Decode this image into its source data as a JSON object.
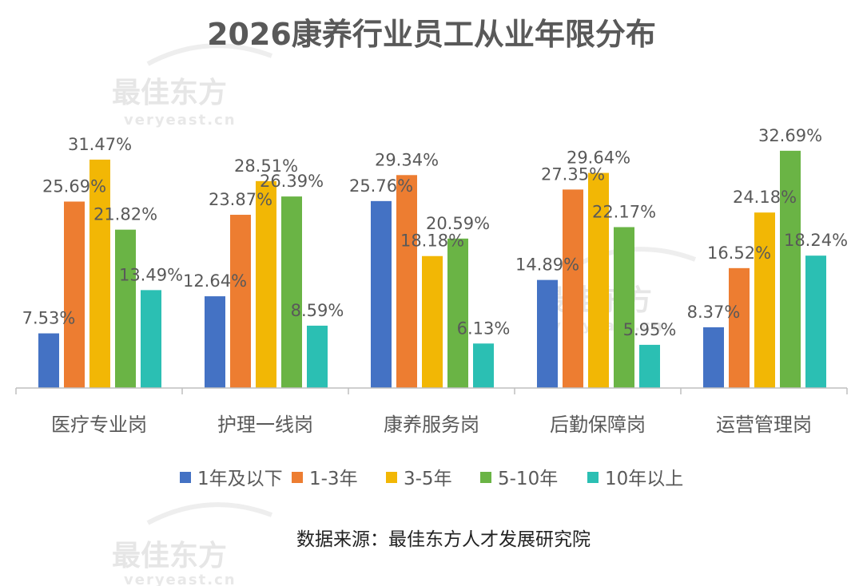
{
  "watermark": {
    "cn": "最佳东方",
    "en": "veryeast.cn"
  },
  "source": "数据来源：最佳东方人才发展研究院",
  "chart_data": {
    "type": "bar",
    "title": "2026康养行业员工从业年限分布",
    "categories": [
      "医疗专业岗",
      "护理一线岗",
      "康养服务岗",
      "后勤保障岗",
      "运营管理岗"
    ],
    "series": [
      {
        "name": "1年及以下",
        "color": "#4472c4",
        "values": [
          7.53,
          12.64,
          25.76,
          14.89,
          8.37
        ],
        "labels": [
          "7.53%",
          "12.64%",
          "25.76%",
          "14.89%",
          "8.37%"
        ]
      },
      {
        "name": "1-3年",
        "color": "#ed7d31",
        "values": [
          25.69,
          23.87,
          29.34,
          27.35,
          16.52
        ],
        "labels": [
          "25.69%",
          "23.87%",
          "29.34%",
          "27.35%",
          "16.52%"
        ]
      },
      {
        "name": "3-5年",
        "color": "#f2b705",
        "values": [
          31.47,
          28.51,
          18.18,
          29.64,
          24.18
        ],
        "labels": [
          "31.47%",
          "28.51%",
          "18.18%",
          "29.64%",
          "24.18%"
        ]
      },
      {
        "name": "5-10年",
        "color": "#6ab445",
        "values": [
          21.82,
          26.39,
          20.59,
          22.17,
          32.69
        ],
        "labels": [
          "21.82%",
          "26.39%",
          "20.59%",
          "22.17%",
          "32.69%"
        ]
      },
      {
        "name": "10年以上",
        "color": "#2bbfb3",
        "values": [
          13.49,
          8.59,
          6.13,
          5.95,
          18.24
        ],
        "labels": [
          "13.49%",
          "8.59%",
          "6.13%",
          "5.95%",
          "18.24%"
        ]
      }
    ],
    "ylim": [
      0,
      35
    ],
    "grid": false,
    "legend_position": "bottom"
  }
}
